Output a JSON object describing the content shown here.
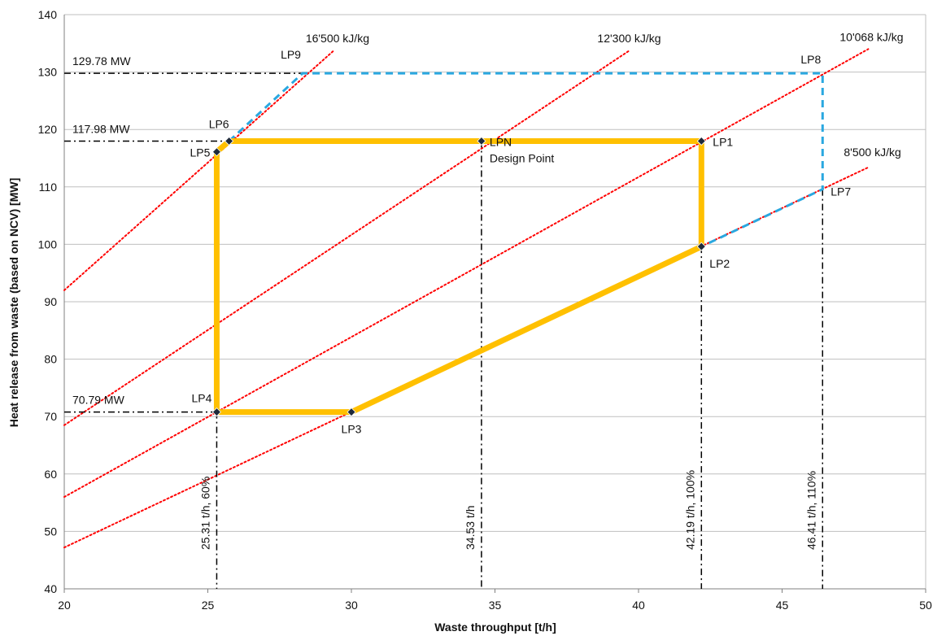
{
  "chart_data": {
    "type": "line",
    "title": "",
    "xlabel": "Waste throughput [t/h]",
    "ylabel": "Heat release from waste (based on NCV) [MW]",
    "xlim": [
      20,
      50
    ],
    "ylim": [
      40,
      140
    ],
    "x_ticks": [
      20,
      25,
      30,
      35,
      40,
      45,
      50
    ],
    "y_ticks": [
      40,
      50,
      60,
      70,
      80,
      90,
      100,
      110,
      120,
      130,
      140
    ],
    "grid": "horizontal",
    "colors": {
      "envelope": "#ffc000",
      "extension": "#2aa8e0",
      "ncv_lines": "#ff0000",
      "reference": "#000000",
      "gridline": "#bfbfbf"
    },
    "points": [
      {
        "label": "LP1",
        "x": 42.19,
        "y": 117.98
      },
      {
        "label": "LP2",
        "x": 42.19,
        "y": 99.61
      },
      {
        "label": "LP3",
        "x": 30.0,
        "y": 70.79
      },
      {
        "label": "LP4",
        "x": 25.31,
        "y": 70.79
      },
      {
        "label": "LP5",
        "x": 25.31,
        "y": 116.1
      },
      {
        "label": "LP6",
        "x": 25.74,
        "y": 117.98
      },
      {
        "label": "LPN",
        "x": 34.53,
        "y": 117.98
      },
      {
        "label": "LP7",
        "x": 46.41,
        "y": 109.6
      },
      {
        "label": "LP8",
        "x": 46.41,
        "y": 129.78
      },
      {
        "label": "LP9",
        "x": 28.3,
        "y": 129.78
      }
    ],
    "design_point_label": "Design Point",
    "operating_envelope": [
      "LP6",
      "LP1",
      "LP2",
      "LP3",
      "LP4",
      "LP5",
      "LP6"
    ],
    "extension_lines": [
      [
        "LP6",
        "LP9",
        "LP8",
        "LP7",
        "LP2"
      ]
    ],
    "ncv_lines": [
      {
        "name": "16'500 kJ/kg",
        "x": [
          20,
          29.4
        ],
        "y": [
          92,
          133.8
        ]
      },
      {
        "name": "12'300 kJ/kg",
        "x": [
          20,
          39.7
        ],
        "y": [
          68.5,
          133.8
        ]
      },
      {
        "name": "10'068 kJ/kg",
        "x": [
          20,
          48
        ],
        "y": [
          56,
          134
        ]
      },
      {
        "name": "8'500 kJ/kg",
        "x": [
          20,
          48
        ],
        "y": [
          47.2,
          113.4
        ]
      }
    ],
    "horizontal_refs": [
      {
        "label": "129.78 MW",
        "y": 129.78,
        "x_end": 28.3
      },
      {
        "label": "117.98 MW",
        "y": 117.98,
        "x_end": 25.74
      },
      {
        "label": "70.79 MW",
        "y": 70.79,
        "x_end": 25.31
      }
    ],
    "vertical_refs": [
      {
        "label": "25.31 t/h, 60%",
        "x": 25.31,
        "y_top": 70.79
      },
      {
        "label": "34.53 t/h",
        "x": 34.53,
        "y_top": 117.98
      },
      {
        "label": "42.19 t/h, 100%",
        "x": 42.19,
        "y_top": 99.61
      },
      {
        "label": "46.41 t/h, 110%",
        "x": 46.41,
        "y_top": 109.6
      }
    ]
  }
}
